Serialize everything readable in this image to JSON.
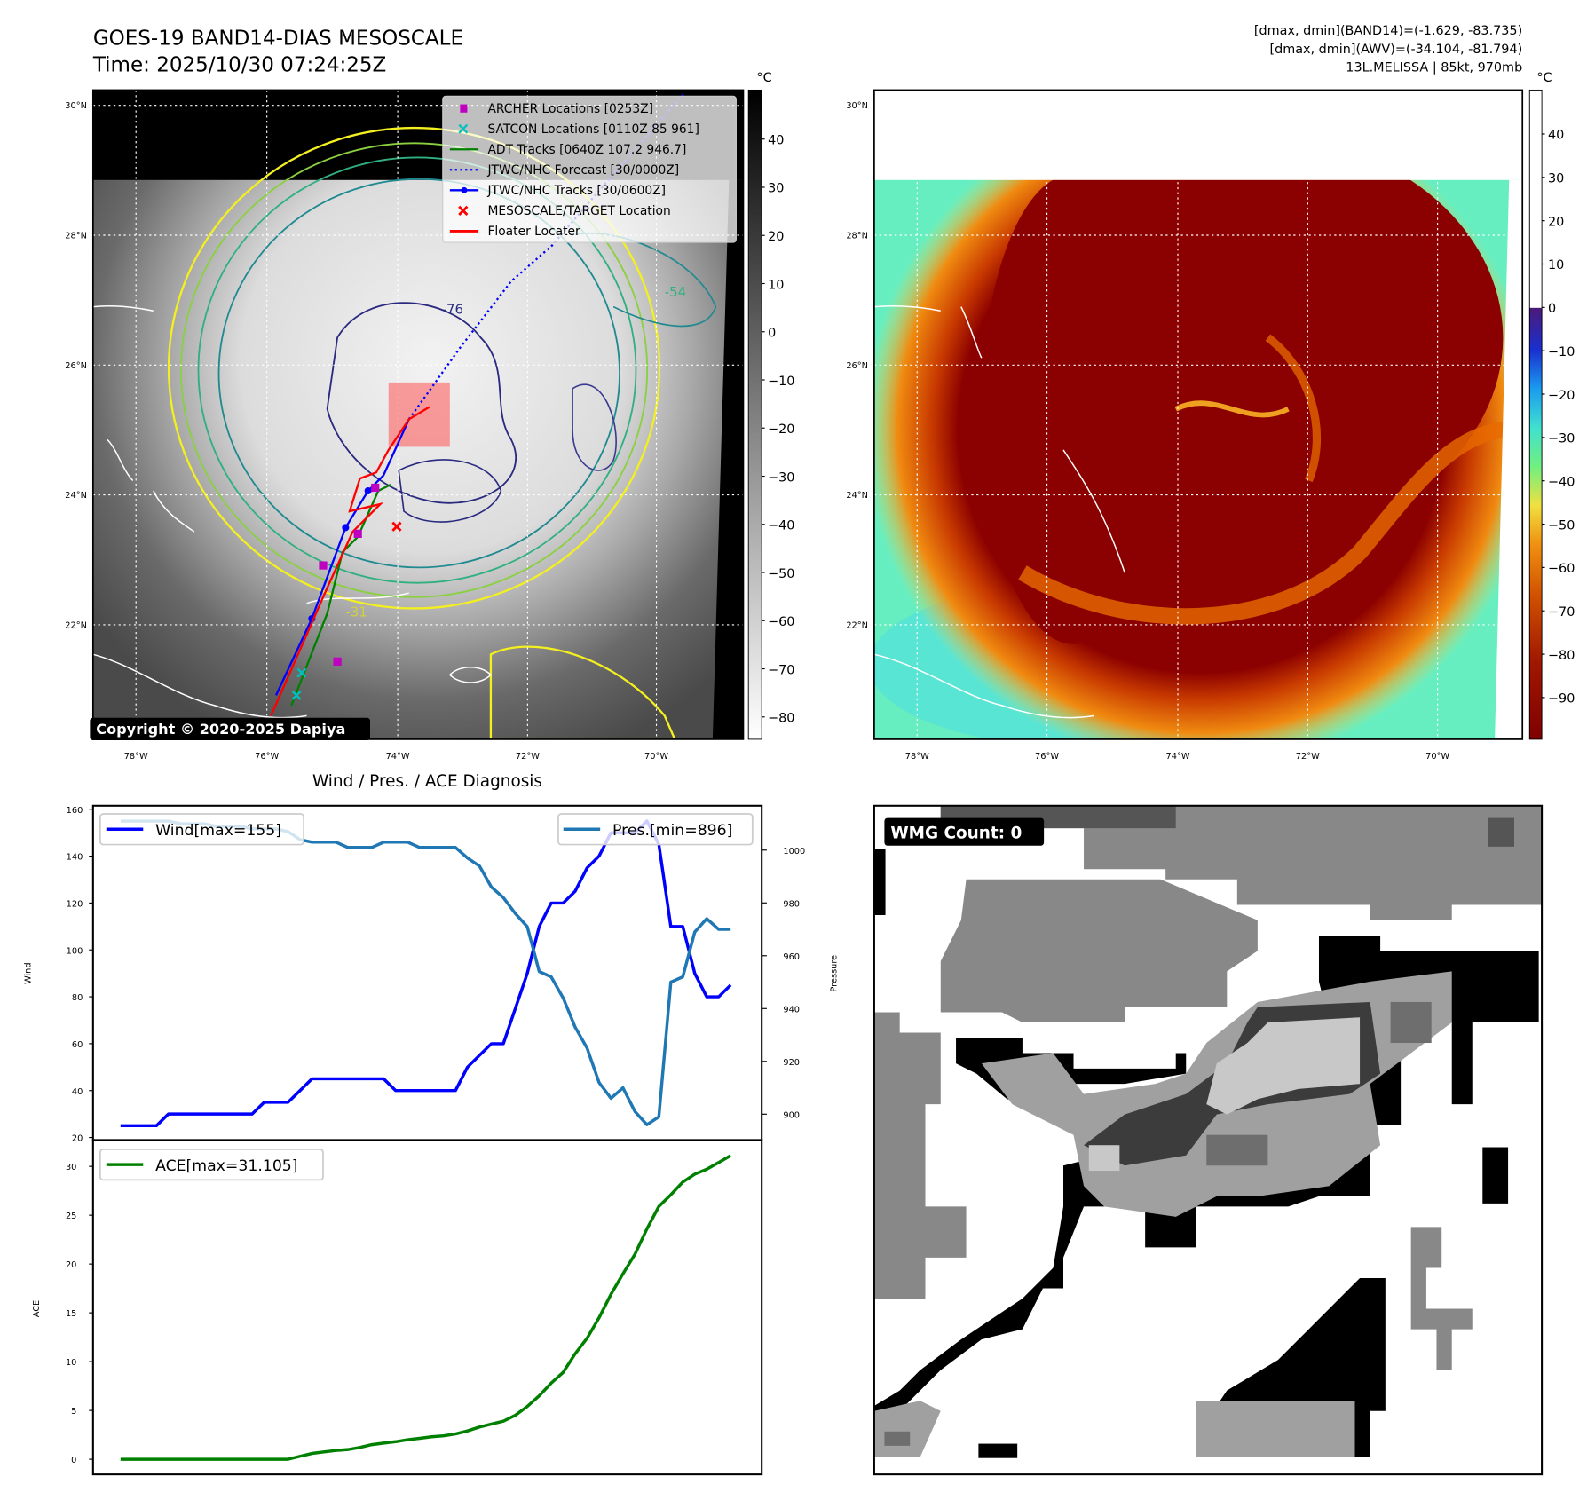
{
  "header": {
    "title": "GOES-19 BAND14-DIAS MESOSCALE",
    "time": "Time: 2025/10/30 07:24:25Z",
    "info_lines": [
      "[dmax, dmin](BAND14)=(-1.629, -83.735)",
      "[dmax, dmin](AWV)=(-34.104, -81.794)",
      "13L.MELISSA | 85kt, 970mb"
    ]
  },
  "ir_map": {
    "lat_ticks": [
      "30°N",
      "28°N",
      "26°N",
      "24°N",
      "22°N"
    ],
    "lon_ticks": [
      "78°W",
      "76°W",
      "74°W",
      "72°W",
      "70°W"
    ],
    "contour_labels": [
      "-76",
      "-54",
      "-31"
    ],
    "copyright": "Copyright © 2020-2025 Dapiya",
    "legend": [
      {
        "label": "ARCHER Locations [0253Z]",
        "color": "#c000c0",
        "marker": "square"
      },
      {
        "label": "SATCON Locations [0110Z 85 961]",
        "color": "#00c0c0",
        "marker": "x"
      },
      {
        "label": "ADT Tracks [0640Z 107.2 946.7]",
        "color": "#008000",
        "marker": "line"
      },
      {
        "label": "JTWC/NHC Forecast [30/0000Z]",
        "color": "#0000ff",
        "marker": "dotted"
      },
      {
        "label": "JTWC/NHC Tracks [30/0600Z]",
        "color": "#0000ff",
        "marker": "line-dot"
      },
      {
        "label": "MESOSCALE/TARGET Location",
        "color": "#ff0000",
        "marker": "x"
      },
      {
        "label": "Floater Locater",
        "color": "#ff0000",
        "marker": "line"
      }
    ],
    "colorbar": {
      "unit": "°C",
      "labels": [
        "40",
        "30",
        "20",
        "10",
        "0",
        "−10",
        "−20",
        "−30",
        "−40",
        "−50",
        "−60",
        "−70",
        "−80"
      ]
    }
  },
  "awv_map": {
    "lat_ticks": [
      "30°N",
      "28°N",
      "26°N",
      "24°N",
      "22°N"
    ],
    "lon_ticks": [
      "78°W",
      "76°W",
      "74°W",
      "72°W",
      "70°W"
    ],
    "colorbar": {
      "unit": "°C",
      "labels": [
        "40",
        "30",
        "20",
        "10",
        "0",
        "−10",
        "−20",
        "−30",
        "−40",
        "−50",
        "−60",
        "−70",
        "−80",
        "−90"
      ]
    }
  },
  "wmg": {
    "label": "WMG Count: 0"
  },
  "chart_data": [
    {
      "type": "line",
      "title": "Wind / Pres. / ACE Diagnosis",
      "ylabel": "Wind",
      "y2label": "Pressure",
      "ylim": [
        18.9,
        161.5
      ],
      "y2lim": [
        890.2,
        1016.8
      ],
      "xlim": [
        -2.3,
        53.6
      ],
      "yticks": [
        20,
        40,
        60,
        80,
        100,
        120,
        140,
        160
      ],
      "y2ticks": [
        900,
        920,
        940,
        960,
        980,
        1000
      ],
      "series": [
        {
          "name": "Wind[max=155]",
          "axis": "left",
          "color": "#0000ff",
          "values": [
            25,
            25,
            25,
            25,
            30,
            30,
            30,
            30,
            30,
            30,
            30,
            30,
            35,
            35,
            35,
            40,
            45,
            45,
            45,
            45,
            45,
            45,
            45,
            40,
            40,
            40,
            40,
            40,
            40,
            50,
            55,
            60,
            60,
            75,
            90,
            110,
            120,
            120,
            125,
            135,
            140,
            150,
            150,
            150,
            155,
            145,
            110,
            110,
            90,
            80,
            80,
            85
          ]
        },
        {
          "name": "Pres.[min=896]",
          "axis": "right",
          "color": "#1f77b4",
          "values": [
            1011,
            1011,
            1011,
            1011,
            1011,
            1010,
            1010,
            1010,
            1009,
            1009,
            1009,
            1008,
            1008,
            1008,
            1007,
            1004,
            1003,
            1003,
            1003,
            1001,
            1001,
            1001,
            1003,
            1003,
            1003,
            1001,
            1001,
            1001,
            1001,
            997,
            994,
            986,
            982,
            976,
            971,
            954,
            952,
            944,
            933,
            925,
            912,
            906,
            910,
            901,
            896,
            899,
            950,
            952,
            969,
            974,
            970,
            970
          ]
        }
      ]
    },
    {
      "type": "line",
      "ylabel": "ACE",
      "ylim": [
        -1.55,
        32.7
      ],
      "xlim": [
        -2.3,
        53.6
      ],
      "yticks": [
        0,
        5,
        10,
        15,
        20,
        25,
        30
      ],
      "series": [
        {
          "name": "ACE[max=31.105]",
          "color": "#008000",
          "values": [
            0,
            0,
            0,
            0,
            0,
            0,
            0,
            0,
            0,
            0,
            0,
            0,
            0,
            0,
            0,
            0.3,
            0.6,
            0.75,
            0.9,
            1.0,
            1.2,
            1.5,
            1.65,
            1.8,
            2.0,
            2.15,
            2.3,
            2.4,
            2.6,
            2.9,
            3.3,
            3.6,
            3.9,
            4.5,
            5.4,
            6.5,
            7.8,
            8.9,
            10.8,
            12.4,
            14.5,
            16.9,
            19,
            21,
            23.6,
            25.9,
            27.1,
            28.4,
            29.2,
            29.7,
            30.4,
            31.105
          ]
        }
      ]
    }
  ]
}
